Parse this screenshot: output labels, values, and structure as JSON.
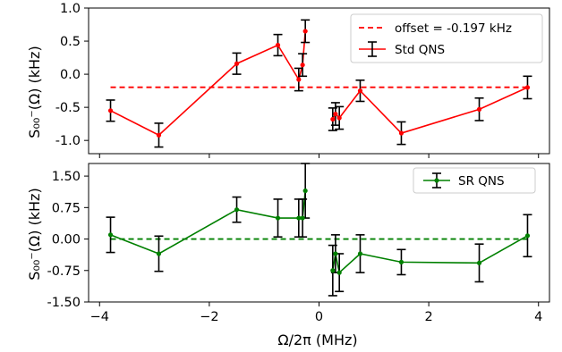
{
  "chart_data": [
    {
      "type": "line",
      "ylabel": "S₀₀⁻(Ω) (kHz)",
      "xlim": [
        -4.2,
        4.2
      ],
      "ylim": [
        -1.2,
        1.0
      ],
      "yticks": [
        "-1.0",
        "-0.5",
        "0.0",
        "0.5",
        "1.0"
      ],
      "ytick_values": [
        -1.0,
        -0.5,
        0.0,
        0.5,
        1.0
      ],
      "legend_position": "top-right",
      "offset": {
        "name": "offset = -0.197 kHz",
        "value": -0.197,
        "color": "#ff0000",
        "style": "dashed"
      },
      "series": [
        {
          "name": "Std QNS",
          "color": "#ff0000",
          "errorbars": true,
          "segments": [
            {
              "x": [
                -3.8,
                -2.92,
                -1.5,
                -0.75,
                -0.37,
                -0.3,
                -0.25
              ],
              "y": [
                -0.55,
                -0.92,
                0.16,
                0.44,
                -0.08,
                0.14,
                0.65
              ],
              "err": [
                0.16,
                0.18,
                0.16,
                0.16,
                0.17,
                0.17,
                0.17
              ]
            },
            {
              "x": [
                0.25,
                0.3,
                0.37,
                0.75,
                1.5,
                2.92,
                3.8
              ],
              "y": [
                -0.68,
                -0.6,
                -0.66,
                -0.25,
                -0.89,
                -0.53,
                -0.2
              ],
              "err": [
                0.17,
                0.17,
                0.17,
                0.16,
                0.17,
                0.17,
                0.17
              ]
            }
          ]
        }
      ]
    },
    {
      "type": "line",
      "xlabel": "Ω/2π (MHz)",
      "ylabel": "S₀₀⁻(Ω) (kHz)",
      "xlim": [
        -4.2,
        4.2
      ],
      "ylim": [
        -1.5,
        1.8
      ],
      "xticks": [
        "−4",
        "−2",
        "0",
        "2",
        "4"
      ],
      "xtick_values": [
        -4,
        -2,
        0,
        2,
        4
      ],
      "yticks": [
        "-1.50",
        "-0.75",
        "0.00",
        "0.75",
        "1.50"
      ],
      "ytick_values": [
        -1.5,
        -0.75,
        0.0,
        0.75,
        1.5
      ],
      "legend_position": "top-right",
      "baseline": {
        "value": 0.0,
        "color": "#008000",
        "style": "dashed"
      },
      "series": [
        {
          "name": "SR QNS",
          "color": "#008000",
          "errorbars": true,
          "segments": [
            {
              "x": [
                -3.8,
                -2.92,
                -1.5,
                -0.75,
                -0.37,
                -0.3,
                -0.25
              ],
              "y": [
                0.1,
                -0.35,
                0.7,
                0.5,
                0.5,
                0.5,
                1.15
              ],
              "err": [
                0.42,
                0.42,
                0.3,
                0.45,
                0.45,
                0.45,
                0.65
              ]
            },
            {
              "x": [
                0.25,
                0.3,
                0.37,
                0.75,
                1.5,
                2.92,
                3.8
              ],
              "y": [
                -0.75,
                -0.35,
                -0.8,
                -0.35,
                -0.55,
                -0.57,
                0.08
              ],
              "err": [
                0.6,
                0.45,
                0.45,
                0.45,
                0.3,
                0.45,
                0.5
              ]
            }
          ]
        }
      ]
    }
  ]
}
